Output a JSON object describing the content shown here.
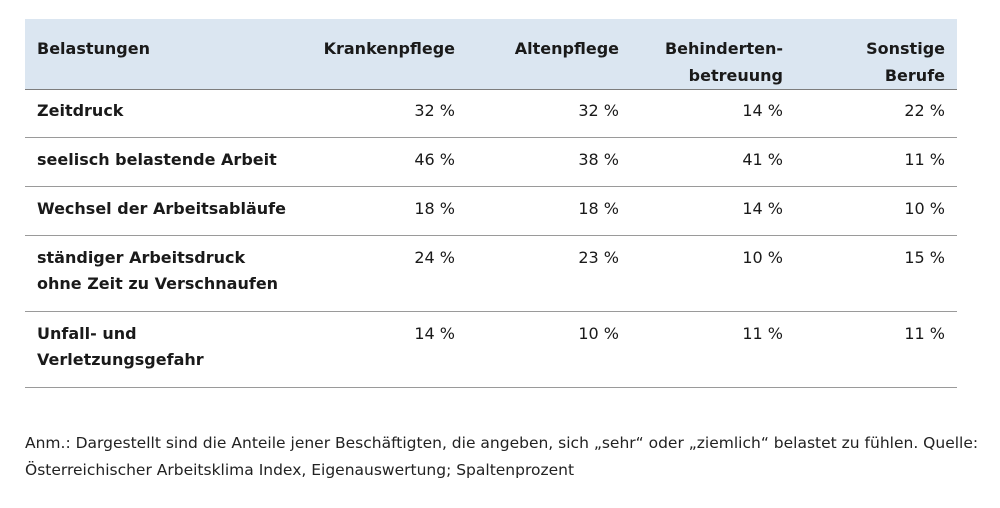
{
  "table": {
    "headers": [
      "Belastungen",
      "Krankenpflege",
      "Altenpflege",
      "Behinderten-\nbetreuung",
      "Sonstige\nBerufe"
    ],
    "rows": [
      [
        "Zeitdruck",
        "32 %",
        "32 %",
        "14 %",
        "22 %"
      ],
      [
        "seelisch belastende Arbeit",
        "46 %",
        "38 %",
        "41 %",
        "11 %"
      ],
      [
        "Wechsel der Arbeitsabläufe",
        "18 %",
        "18 %",
        "14 %",
        "10 %"
      ],
      [
        "ständiger Arbeitsdruck\nohne Zeit zu Verschnaufen",
        "24 %",
        "23 %",
        "10 %",
        "15 %"
      ],
      [
        "Unfall- und\nVerletzungsgefahr",
        "14 %",
        "10 %",
        "11 %",
        "11 %"
      ]
    ]
  },
  "note": {
    "text": "Anm.: Dargestellt sind die Anteile jener Beschäftigten, die angeben, sich „sehr“ oder „ziemlich“ belastet zu fühlen. Quelle: Österreichischer Arbeitsklima Index, Eigenauswertung; Spaltenprozent"
  }
}
